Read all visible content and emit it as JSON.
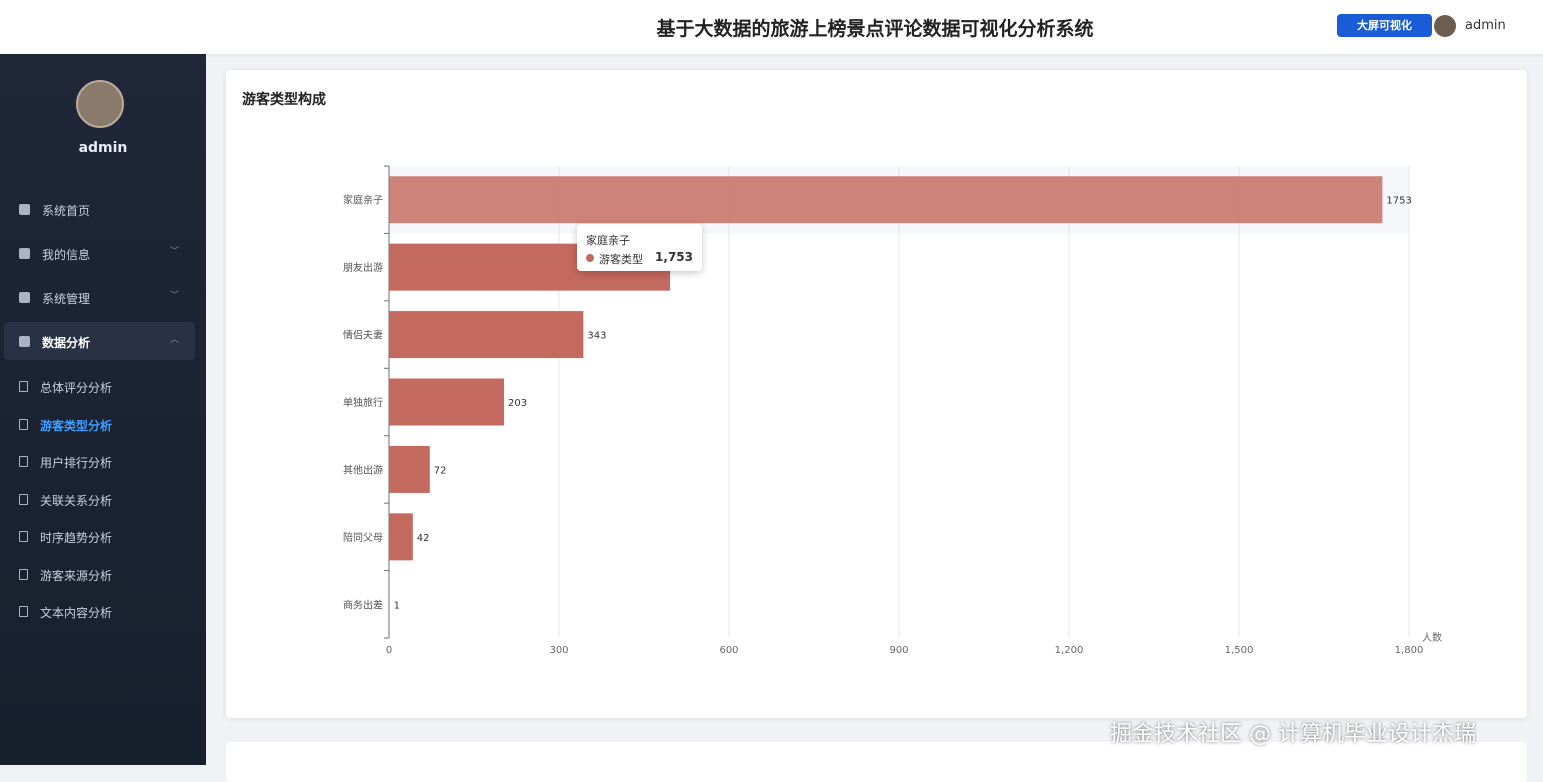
{
  "header": {
    "title": "基于大数据的旅游上榜景点评论数据可视化分析系统",
    "button": "大屏可视化",
    "user": "admin"
  },
  "sidebar": {
    "user": "admin",
    "menu": [
      "系统首页",
      "我的信息",
      "系统管理",
      "数据分析"
    ],
    "submenu": [
      "总体评分分析",
      "游客类型分析",
      "用户排行分析",
      "关联关系分析",
      "时序趋势分析",
      "游客来源分析",
      "文本内容分析"
    ]
  },
  "card": {
    "title": "游客类型构成"
  },
  "chart_data": {
    "type": "hbar",
    "x_label": "人数",
    "categories": [
      "家庭亲子",
      "朋友出游",
      "情侣夫妻",
      "单独旅行",
      "其他出游",
      "陪同父母",
      "商务出差"
    ],
    "series": [
      {
        "name": "游客类型",
        "color": "#c4695e",
        "values": [
          1753,
          496,
          343,
          203,
          72,
          42,
          1
        ]
      }
    ],
    "xlim": [
      0,
      1800
    ],
    "xticks": [
      0,
      300,
      600,
      900,
      {
        "value": 1200,
        "label": "1,200"
      },
      {
        "value": 1500,
        "label": "1,500"
      },
      {
        "value": 1800,
        "label": "1,800"
      }
    ],
    "grid": true
  },
  "tooltip": {
    "title": "家庭亲子",
    "series": "游客类型",
    "value_label": "1,753"
  },
  "watermark": "掘金技术社区 @ 计算机毕业设计杰瑞"
}
